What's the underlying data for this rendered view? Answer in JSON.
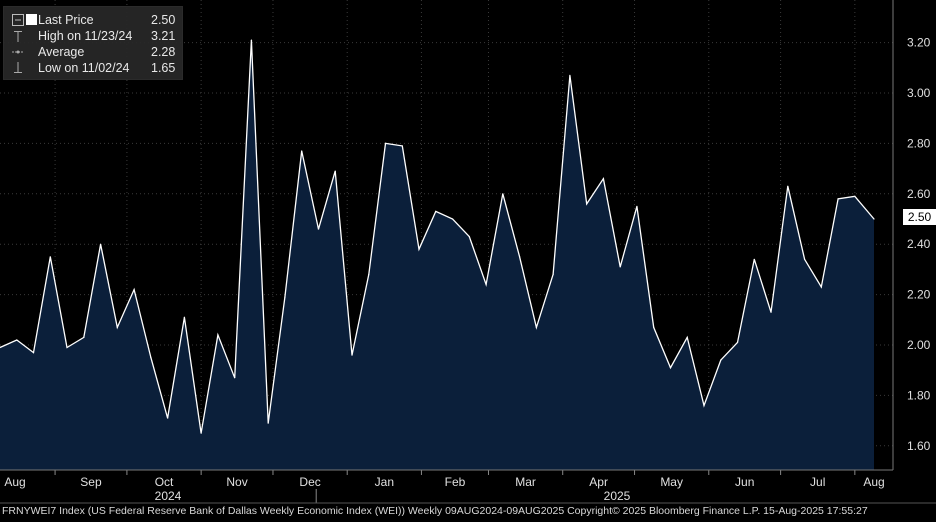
{
  "legend": {
    "last_price": {
      "label": "Last Price",
      "value": "2.50"
    },
    "high": {
      "label": "High on 11/23/24",
      "value": "3.21"
    },
    "average": {
      "label": "Average",
      "value": "2.28"
    },
    "low": {
      "label": "Low on 11/02/24",
      "value": "1.65"
    }
  },
  "footer": "FRNYWEI7 Index (US Federal Reserve Bank of Dallas Weekly Economic Index (WEI))  Weekly 09AUG2024-09AUG2025 Copyright© 2025 Bloomberg Finance L.P. 15-Aug-2025 17:55:27",
  "last_value_tag": "2.50",
  "colors": {
    "background": "#000000",
    "area_fill": "#0b1f3a",
    "line": "#ffffff",
    "grid": "#3a3a3a"
  },
  "chart_data": {
    "type": "area",
    "title": "",
    "xlabel": "",
    "ylabel": "",
    "ylim": [
      1.5,
      3.3
    ],
    "y_ticks": [
      "1.60",
      "1.80",
      "2.00",
      "2.20",
      "2.40",
      "2.60",
      "2.80",
      "3.00",
      "3.20"
    ],
    "x_tick_labels": [
      "Aug",
      "Sep",
      "Oct",
      "Nov",
      "Dec",
      "Jan",
      "Feb",
      "Mar",
      "Apr",
      "May",
      "Jun",
      "Jul",
      "Aug"
    ],
    "year_labels": [
      "2024",
      "2025"
    ],
    "grid": true,
    "legend_position": "top-left",
    "series": [
      {
        "name": "Last Price",
        "x": [
          "2024-08-09",
          "2024-08-16",
          "2024-08-23",
          "2024-08-30",
          "2024-09-06",
          "2024-09-13",
          "2024-09-20",
          "2024-09-27",
          "2024-10-04",
          "2024-10-11",
          "2024-10-18",
          "2024-10-25",
          "2024-11-01",
          "2024-11-08",
          "2024-11-15",
          "2024-11-22",
          "2024-11-29",
          "2024-12-06",
          "2024-12-13",
          "2024-12-20",
          "2024-12-27",
          "2025-01-03",
          "2025-01-10",
          "2025-01-17",
          "2025-01-24",
          "2025-01-31",
          "2025-02-07",
          "2025-02-14",
          "2025-02-21",
          "2025-02-28",
          "2025-03-07",
          "2025-03-14",
          "2025-03-21",
          "2025-03-28",
          "2025-04-04",
          "2025-04-11",
          "2025-04-18",
          "2025-04-25",
          "2025-05-02",
          "2025-05-09",
          "2025-05-16",
          "2025-05-23",
          "2025-05-30",
          "2025-06-06",
          "2025-06-13",
          "2025-06-20",
          "2025-06-27",
          "2025-07-04",
          "2025-07-11",
          "2025-07-18",
          "2025-07-25",
          "2025-08-01",
          "2025-08-09"
        ],
        "values": [
          1.99,
          2.02,
          1.97,
          2.35,
          1.99,
          2.03,
          2.4,
          2.07,
          2.22,
          1.95,
          1.71,
          2.11,
          1.65,
          2.04,
          1.87,
          3.21,
          1.69,
          2.19,
          2.77,
          2.46,
          2.69,
          1.96,
          2.28,
          2.8,
          2.79,
          2.38,
          2.53,
          2.5,
          2.43,
          2.24,
          2.6,
          2.35,
          2.07,
          2.28,
          3.07,
          2.56,
          2.66,
          2.31,
          2.55,
          2.07,
          1.91,
          2.03,
          1.76,
          1.94,
          2.01,
          2.34,
          2.13,
          2.63,
          2.34,
          2.23,
          2.58,
          2.59,
          2.5
        ]
      }
    ]
  }
}
